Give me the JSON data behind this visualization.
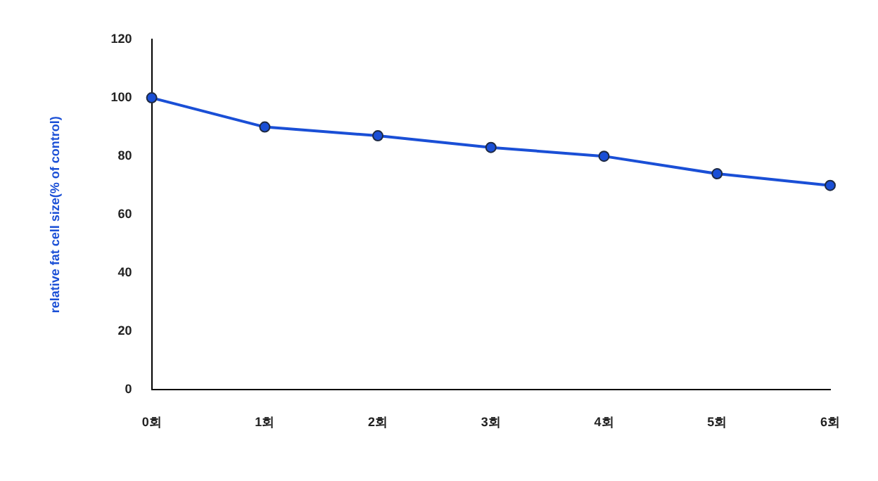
{
  "chart_data": {
    "type": "line",
    "ylabel": "relative fat cell size(% of control)",
    "categories": [
      "0회",
      "1회",
      "2회",
      "3회",
      "4회",
      "5회",
      "6회"
    ],
    "series": [
      {
        "color": "#1a4fd6",
        "values": [
          100,
          90,
          87,
          83,
          80,
          74,
          70
        ]
      }
    ],
    "ylim": [
      0,
      120
    ],
    "yticks": [
      0,
      20,
      40,
      60,
      80,
      100,
      120
    ],
    "grid": false,
    "legend": false,
    "marker": "circle",
    "line_style": "solid"
  }
}
